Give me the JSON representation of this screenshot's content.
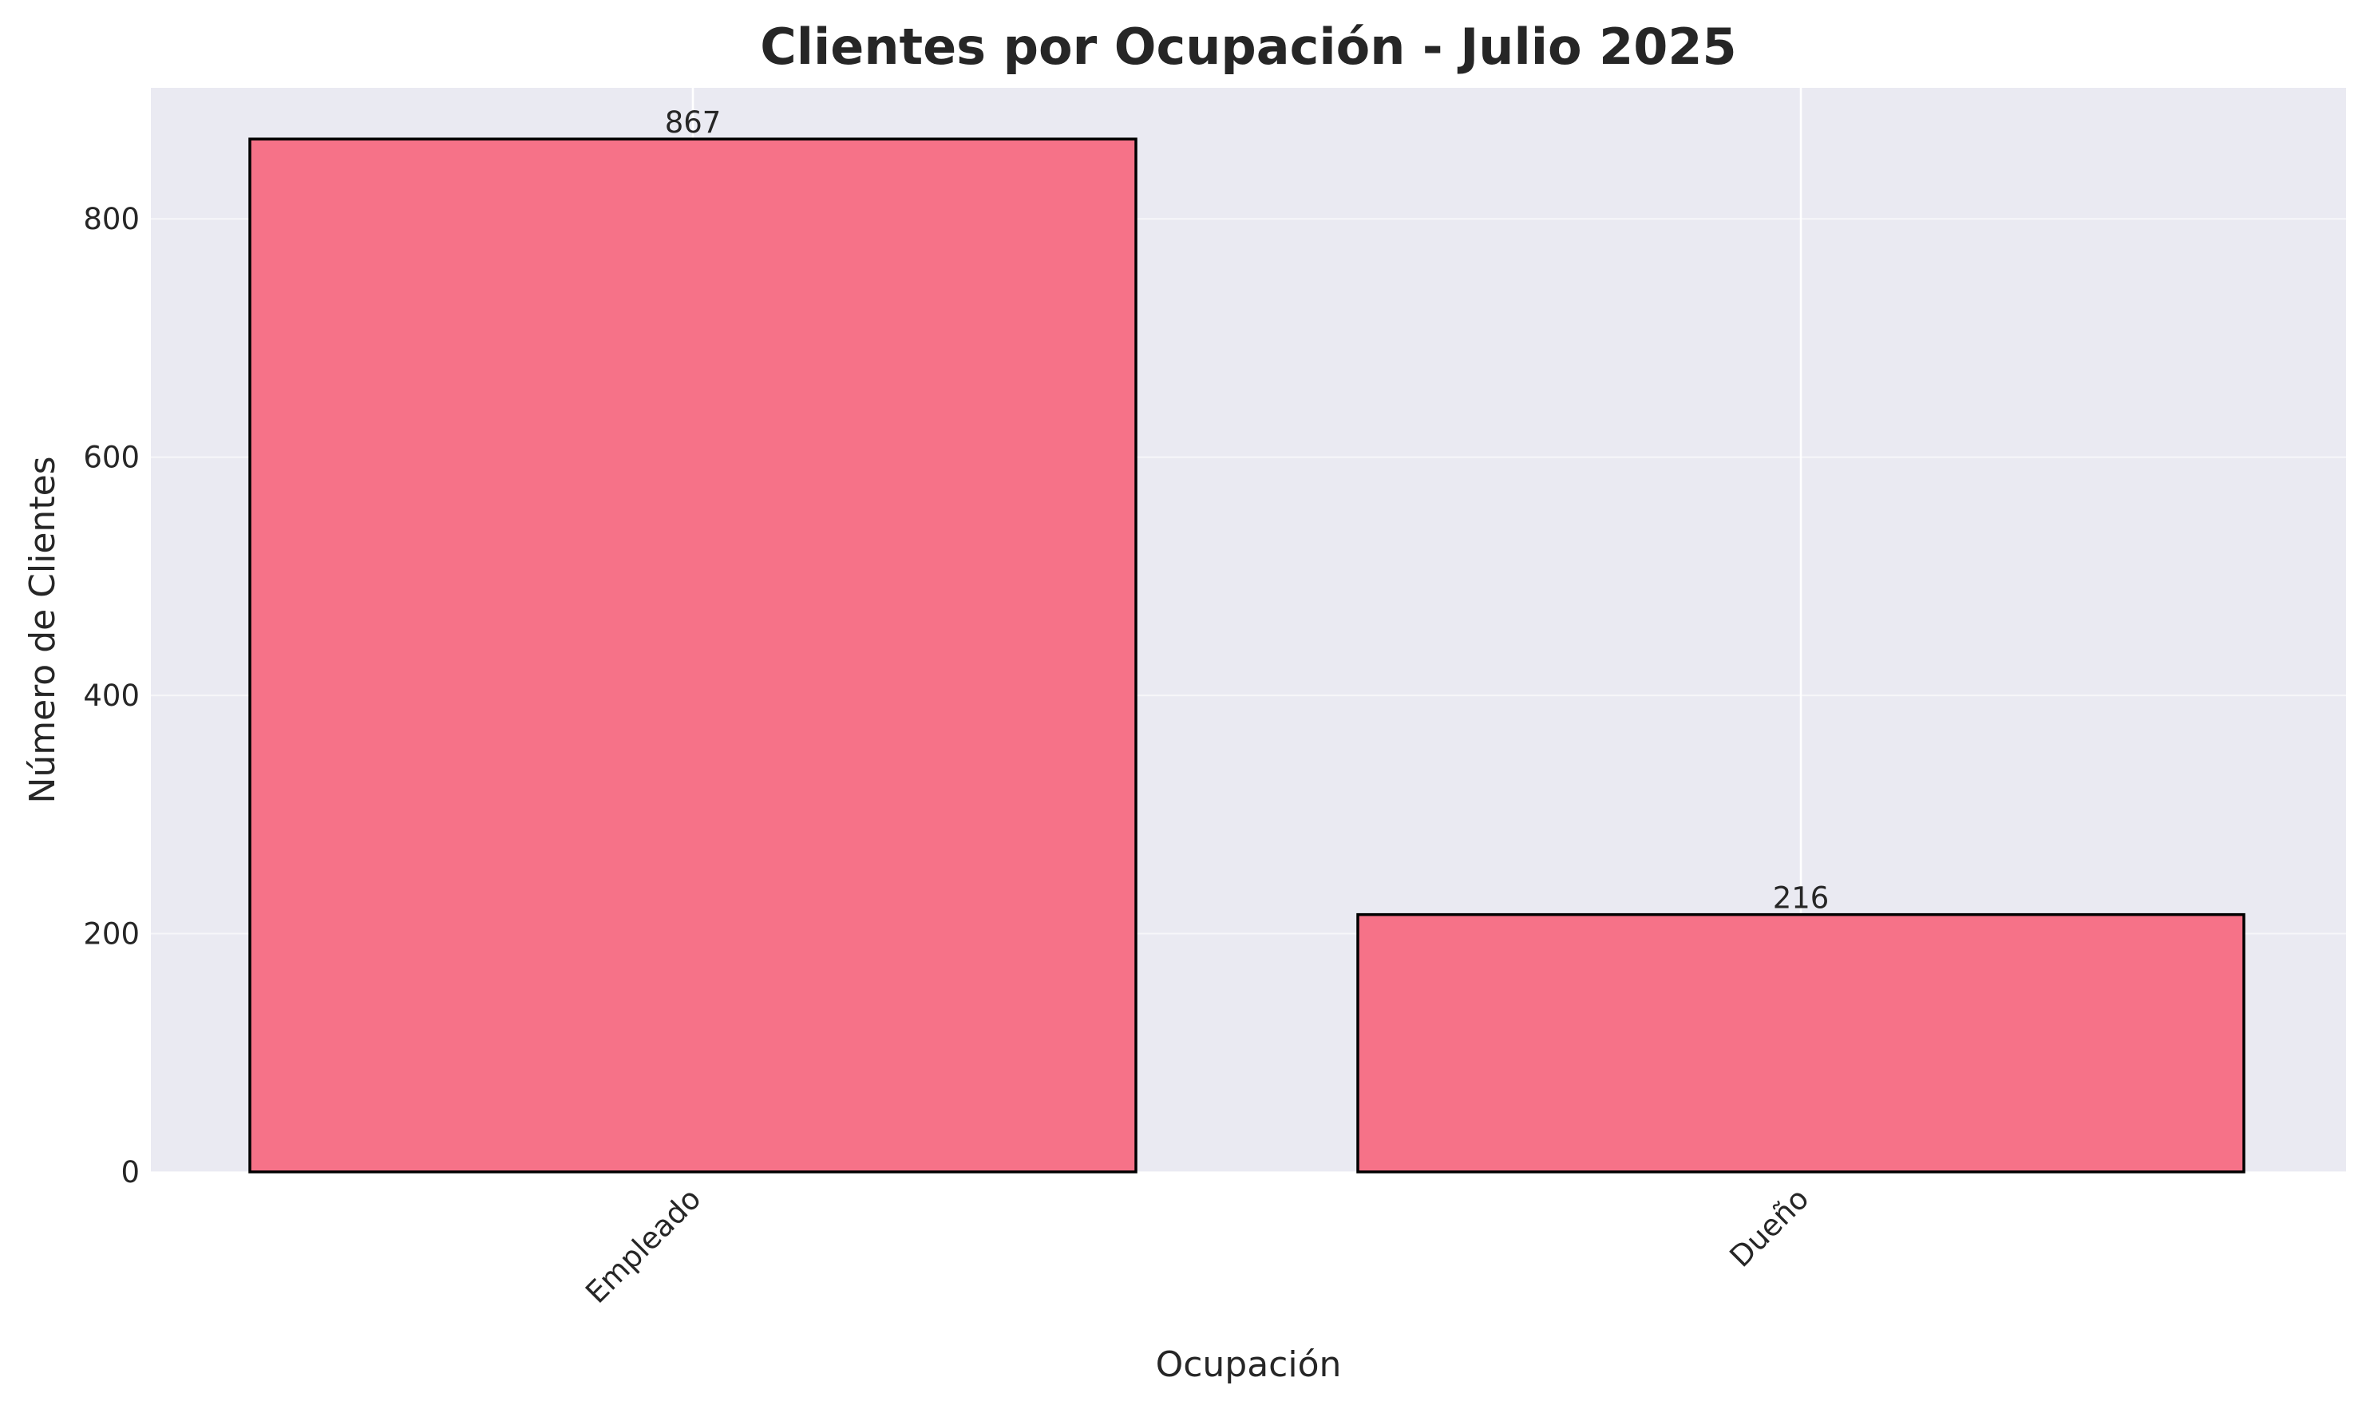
{
  "chart_data": {
    "type": "bar",
    "title": "Clientes por Ocupación - Julio 2025",
    "xlabel": "Ocupación",
    "ylabel": "Número de Clientes",
    "categories": [
      "Empleado",
      "Dueño"
    ],
    "values": [
      867,
      216
    ],
    "data_labels": [
      "867",
      "216"
    ],
    "ylim": [
      0,
      910
    ],
    "yticks": [
      0,
      200,
      400,
      600,
      800
    ],
    "ytick_labels": [
      "0",
      "200",
      "400",
      "600",
      "800"
    ],
    "grid": true,
    "colors": {
      "bar_fill": "#f67288",
      "bar_edge": "#000000",
      "plot_background": "#eaeaf2",
      "grid": "#ffffff"
    }
  }
}
